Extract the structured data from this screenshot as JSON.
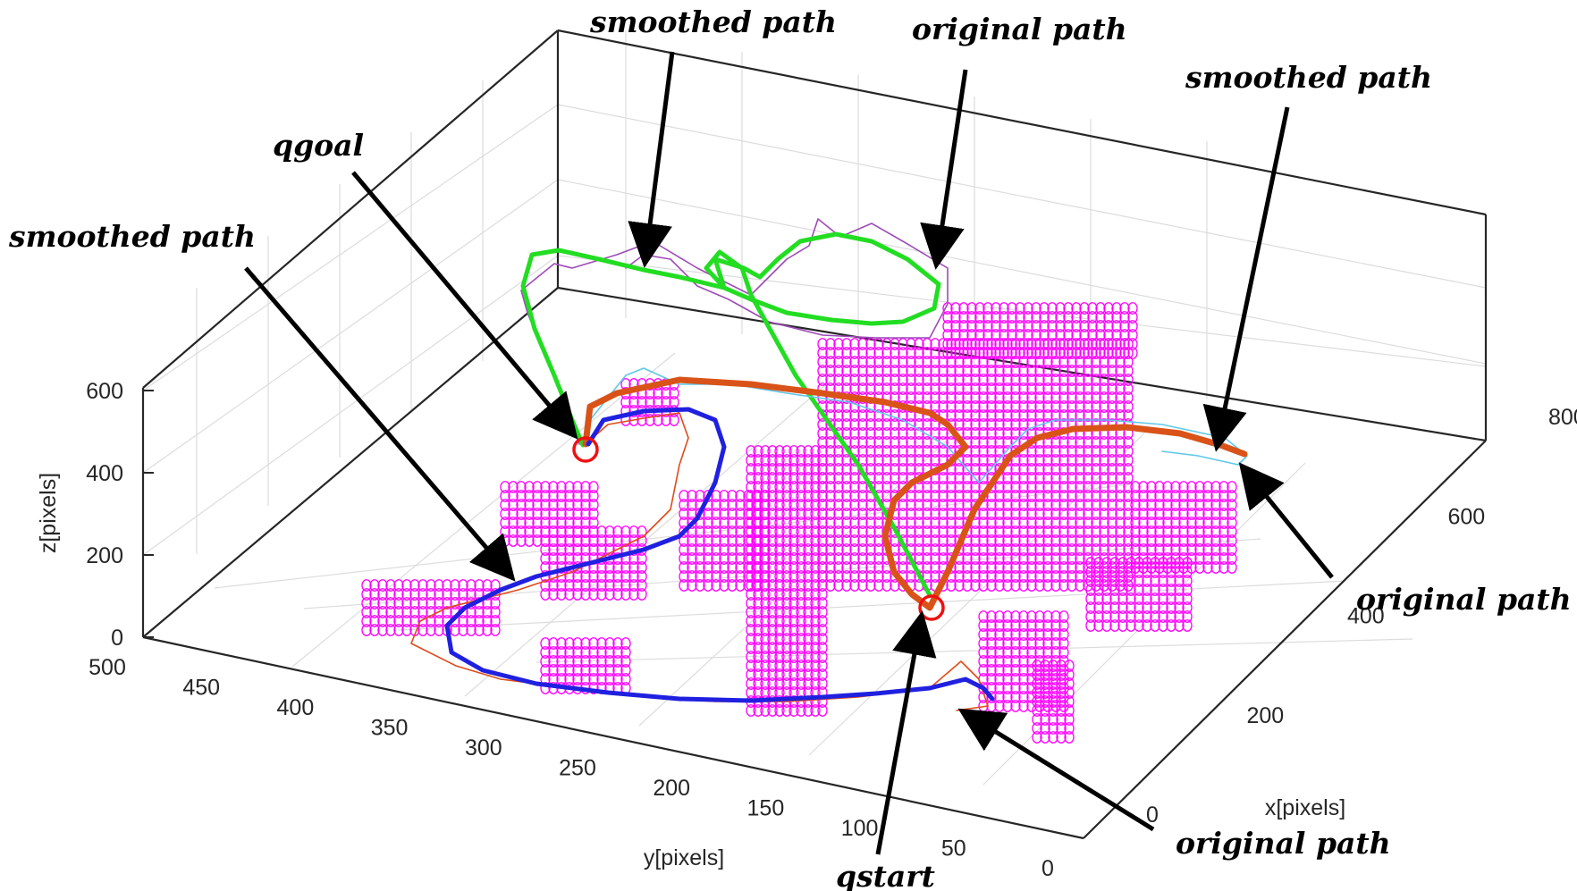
{
  "chart_data": {
    "type": "line3d",
    "title": "",
    "xlabel": "x[pixels]",
    "ylabel": "y[pixels]",
    "zlabel": "z[pixels]",
    "x_ticks": [
      "0",
      "200",
      "400",
      "600",
      "800"
    ],
    "y_ticks": [
      "500",
      "450",
      "400",
      "350",
      "300",
      "250",
      "200",
      "150",
      "100",
      "50",
      "0"
    ],
    "z_ticks": [
      "0",
      "200",
      "400",
      "600"
    ],
    "xlim": [
      0,
      800
    ],
    "ylim": [
      0,
      500
    ],
    "zlim": [
      0,
      600
    ],
    "grid": true,
    "annotations": [
      {
        "text": "smoothed path",
        "target": "green"
      },
      {
        "text": "original path",
        "target": "purple"
      },
      {
        "text": "smoothed path",
        "target": "orange"
      },
      {
        "text": "qgoal",
        "target": "goal"
      },
      {
        "text": "smoothed path",
        "target": "blue"
      },
      {
        "text": "original path",
        "target": "cyan"
      },
      {
        "text": "qstart",
        "target": "start"
      },
      {
        "text": "original path",
        "target": "red"
      }
    ],
    "colors": {
      "obstacle": "#ff00ff",
      "green_smoothed": "#22dd22",
      "purple_original": "#9e4bb8",
      "orange_smoothed": "#d95319",
      "cyan_original": "#5fc8e8",
      "blue_smoothed": "#2020e0",
      "red_original": "#e04a1a",
      "markers": "#ee1111"
    }
  }
}
